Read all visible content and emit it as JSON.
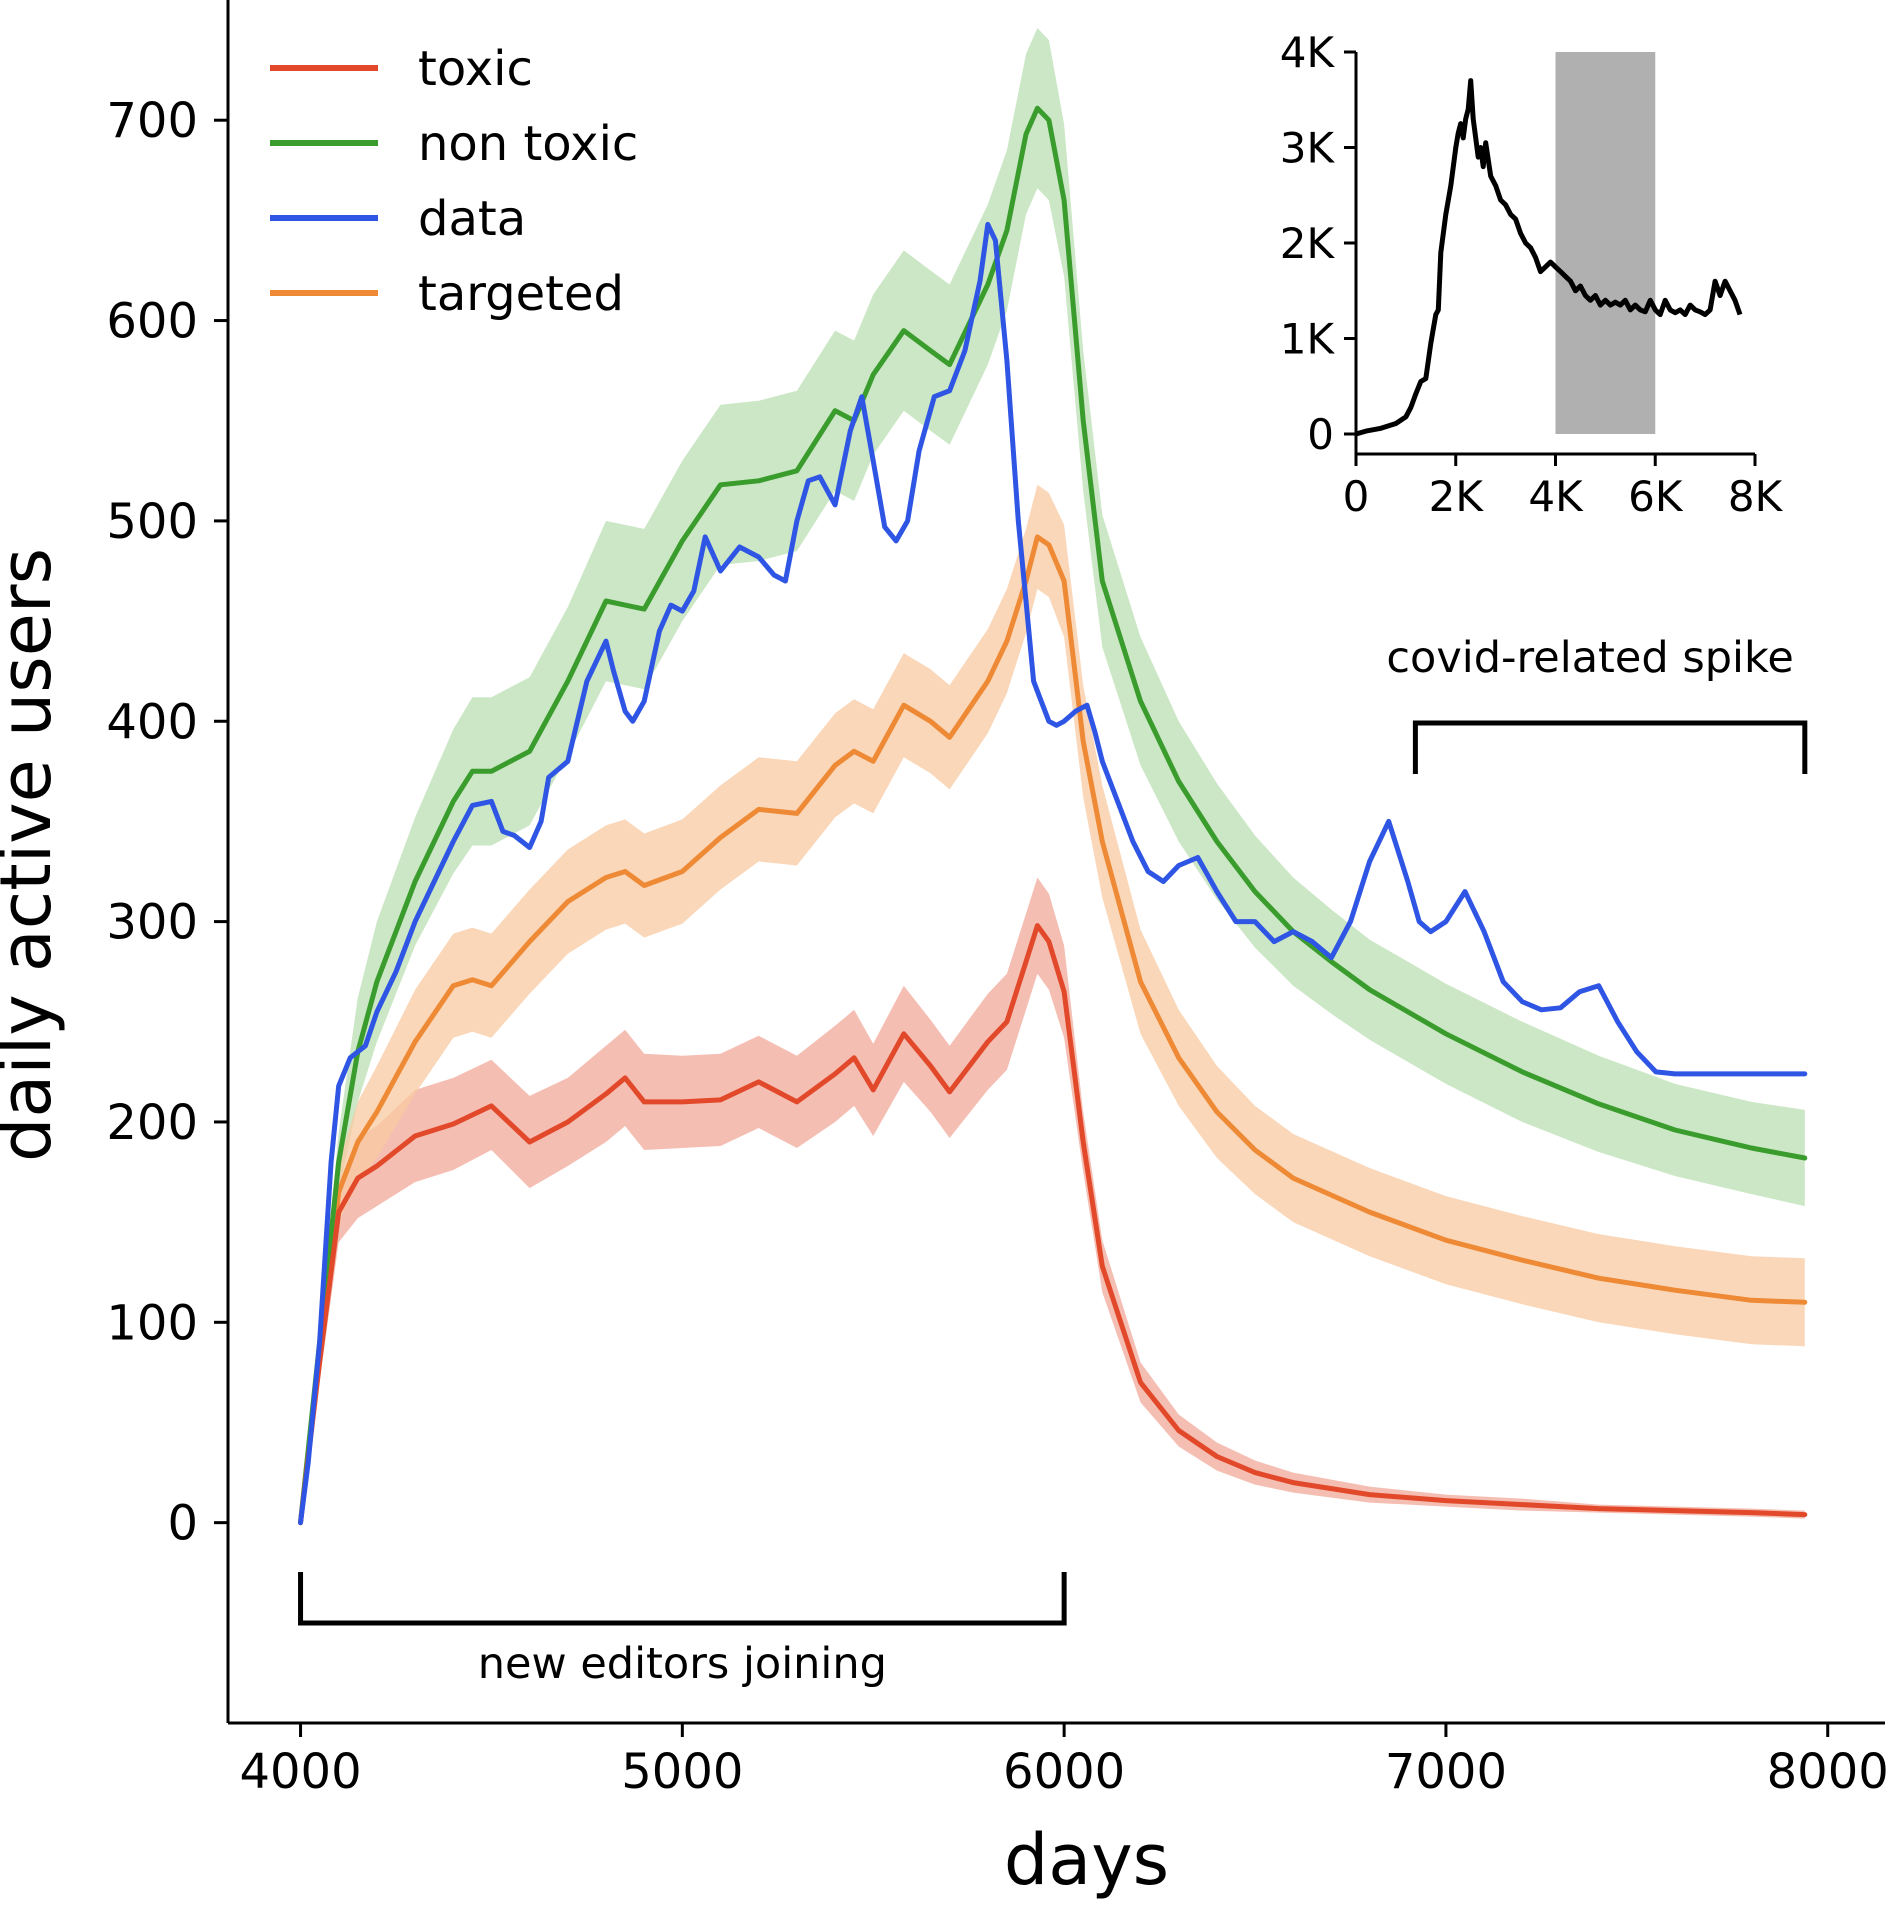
{
  "chart_data": [
    {
      "type": "line",
      "title": "",
      "xlabel": "days",
      "ylabel": "daily active users",
      "xlim": [
        3810,
        8150
      ],
      "ylim": [
        -100,
        760
      ],
      "xticks": [
        4000,
        5000,
        6000,
        7000,
        8000
      ],
      "xtick_labels": [
        "4000",
        "5000",
        "6000",
        "7000",
        "8000"
      ],
      "yticks": [
        0,
        100,
        200,
        300,
        400,
        500,
        600,
        700
      ],
      "ytick_labels": [
        "0",
        "100",
        "200",
        "300",
        "400",
        "500",
        "600",
        "700"
      ],
      "grid": false,
      "legend": "top-left",
      "series": [
        {
          "name": "toxic",
          "color": "#e2492a",
          "band_color": "#f2a899",
          "x": [
            4000,
            4050,
            4100,
            4150,
            4200,
            4300,
            4400,
            4500,
            4600,
            4700,
            4800,
            4850,
            4900,
            5000,
            5100,
            5200,
            5300,
            5400,
            5450,
            5500,
            5580,
            5650,
            5700,
            5800,
            5850,
            5900,
            5930,
            5960,
            6000,
            6050,
            6100,
            6200,
            6300,
            6400,
            6500,
            6600,
            6800,
            7000,
            7200,
            7400,
            7600,
            7800,
            7940
          ],
          "y": [
            0,
            80,
            155,
            172,
            178,
            193,
            199,
            208,
            190,
            200,
            214,
            222,
            210,
            210,
            211,
            220,
            210,
            224,
            232,
            216,
            244,
            228,
            215,
            240,
            250,
            280,
            298,
            290,
            265,
            190,
            128,
            70,
            46,
            33,
            25,
            20,
            14,
            11,
            9,
            7,
            6,
            5,
            4
          ],
          "band_lower": [
            0,
            70,
            140,
            152,
            158,
            170,
            176,
            186,
            167,
            178,
            190,
            198,
            186,
            187,
            188,
            197,
            187,
            200,
            208,
            193,
            220,
            205,
            192,
            216,
            226,
            256,
            274,
            266,
            242,
            175,
            115,
            60,
            38,
            26,
            19,
            15,
            10,
            8,
            6,
            5,
            4,
            3,
            2
          ],
          "band_upper": [
            0,
            90,
            170,
            192,
            198,
            216,
            222,
            231,
            213,
            222,
            238,
            246,
            234,
            233,
            234,
            243,
            233,
            248,
            256,
            239,
            268,
            251,
            238,
            264,
            274,
            304,
            322,
            314,
            288,
            205,
            141,
            80,
            54,
            40,
            31,
            25,
            18,
            14,
            12,
            9,
            8,
            7,
            6
          ]
        },
        {
          "name": "non toxic",
          "color": "#3a9c2d",
          "band_color": "#b9dfb1",
          "x": [
            4000,
            4050,
            4100,
            4150,
            4200,
            4300,
            4400,
            4450,
            4500,
            4600,
            4700,
            4800,
            4850,
            4900,
            5000,
            5100,
            5200,
            5300,
            5400,
            5450,
            5500,
            5580,
            5650,
            5700,
            5800,
            5850,
            5900,
            5930,
            5960,
            6000,
            6050,
            6100,
            6200,
            6300,
            6400,
            6500,
            6600,
            6700,
            6800,
            7000,
            7200,
            7400,
            7600,
            7800,
            7940
          ],
          "y": [
            0,
            90,
            180,
            235,
            270,
            320,
            360,
            375,
            375,
            385,
            420,
            460,
            458,
            456,
            490,
            518,
            520,
            525,
            555,
            550,
            573,
            595,
            585,
            578,
            618,
            645,
            693,
            706,
            700,
            660,
            550,
            470,
            410,
            370,
            340,
            315,
            295,
            280,
            266,
            244,
            225,
            209,
            196,
            187,
            182
          ],
          "band_lower": [
            0,
            85,
            165,
            210,
            240,
            288,
            324,
            338,
            338,
            348,
            383,
            420,
            418,
            416,
            450,
            478,
            480,
            485,
            515,
            510,
            533,
            555,
            545,
            538,
            578,
            605,
            653,
            666,
            660,
            622,
            515,
            437,
            378,
            340,
            311,
            287,
            268,
            254,
            241,
            219,
            200,
            185,
            173,
            164,
            158
          ],
          "band_upper": [
            0,
            95,
            195,
            262,
            300,
            352,
            396,
            412,
            412,
            422,
            457,
            500,
            498,
            496,
            530,
            558,
            560,
            565,
            595,
            590,
            613,
            635,
            625,
            618,
            658,
            685,
            733,
            746,
            740,
            698,
            585,
            503,
            442,
            400,
            369,
            343,
            322,
            306,
            291,
            269,
            250,
            233,
            219,
            210,
            206
          ]
        },
        {
          "name": "data",
          "color": "#2f55e4",
          "x": [
            4000,
            4020,
            4050,
            4080,
            4100,
            4130,
            4170,
            4200,
            4250,
            4300,
            4350,
            4400,
            4450,
            4500,
            4530,
            4560,
            4600,
            4630,
            4650,
            4700,
            4750,
            4800,
            4820,
            4850,
            4870,
            4900,
            4940,
            4970,
            5000,
            5030,
            5060,
            5100,
            5150,
            5200,
            5240,
            5270,
            5300,
            5330,
            5360,
            5400,
            5440,
            5470,
            5500,
            5530,
            5560,
            5590,
            5620,
            5660,
            5700,
            5740,
            5780,
            5800,
            5820,
            5850,
            5880,
            5900,
            5920,
            5940,
            5960,
            5980,
            6000,
            6030,
            6060,
            6080,
            6100,
            6140,
            6180,
            6220,
            6260,
            6300,
            6350,
            6400,
            6450,
            6500,
            6550,
            6600,
            6650,
            6700,
            6750,
            6800,
            6850,
            6900,
            6930,
            6960,
            7000,
            7050,
            7100,
            7150,
            7200,
            7250,
            7300,
            7350,
            7400,
            7450,
            7500,
            7550,
            7600,
            7650,
            7700,
            7750,
            7800,
            7850,
            7900,
            7940
          ],
          "y": [
            0,
            30,
            90,
            180,
            218,
            232,
            238,
            255,
            275,
            300,
            320,
            340,
            358,
            360,
            345,
            343,
            337,
            350,
            372,
            380,
            420,
            440,
            425,
            405,
            400,
            410,
            445,
            458,
            455,
            465,
            492,
            475,
            487,
            482,
            473,
            470,
            500,
            520,
            522,
            508,
            545,
            562,
            530,
            497,
            490,
            500,
            535,
            562,
            565,
            585,
            620,
            648,
            640,
            580,
            500,
            460,
            420,
            410,
            400,
            398,
            400,
            405,
            408,
            395,
            380,
            360,
            340,
            325,
            320,
            328,
            332,
            315,
            300,
            300,
            290,
            295,
            290,
            282,
            300,
            330,
            350,
            320,
            300,
            295,
            300,
            315,
            295,
            270,
            260,
            256,
            257,
            265,
            268,
            250,
            235,
            225,
            224,
            224,
            224,
            224,
            224,
            224,
            224,
            224
          ]
        },
        {
          "name": "targeted",
          "color": "#ee8a35",
          "band_color": "#f8c9a2",
          "x": [
            4000,
            4050,
            4100,
            4150,
            4200,
            4300,
            4400,
            4450,
            4500,
            4600,
            4700,
            4800,
            4850,
            4900,
            5000,
            5100,
            5200,
            5300,
            5400,
            5450,
            5500,
            5580,
            5650,
            5700,
            5800,
            5850,
            5900,
            5930,
            5960,
            6000,
            6050,
            6100,
            6200,
            6300,
            6400,
            6500,
            6600,
            6800,
            7000,
            7200,
            7400,
            7600,
            7800,
            7940
          ],
          "y": [
            0,
            85,
            165,
            190,
            205,
            240,
            268,
            271,
            268,
            290,
            310,
            322,
            325,
            318,
            325,
            342,
            356,
            354,
            378,
            385,
            380,
            408,
            400,
            392,
            420,
            440,
            470,
            492,
            488,
            470,
            390,
            340,
            270,
            232,
            205,
            186,
            172,
            155,
            141,
            131,
            122,
            116,
            111,
            110
          ],
          "band_lower": [
            0,
            78,
            150,
            170,
            182,
            214,
            242,
            245,
            242,
            264,
            284,
            296,
            299,
            292,
            299,
            316,
            330,
            328,
            352,
            359,
            354,
            382,
            374,
            366,
            394,
            414,
            444,
            466,
            462,
            442,
            362,
            312,
            244,
            208,
            182,
            164,
            150,
            133,
            119,
            109,
            100,
            94,
            89,
            88
          ],
          "band_upper": [
            0,
            92,
            180,
            210,
            228,
            266,
            294,
            297,
            294,
            316,
            336,
            348,
            351,
            344,
            351,
            368,
            382,
            380,
            404,
            411,
            406,
            434,
            426,
            418,
            446,
            466,
            496,
            518,
            514,
            498,
            418,
            368,
            296,
            256,
            228,
            208,
            194,
            177,
            163,
            153,
            144,
            138,
            133,
            132
          ]
        }
      ],
      "annotations": [
        {
          "text": "new editors joining",
          "x_start": 4000,
          "x_end": 6000
        },
        {
          "text": "covid-related spike",
          "x_start": 6920,
          "x_end": 7940
        }
      ]
    },
    {
      "type": "line",
      "title": "",
      "xlabel": "",
      "ylabel": "",
      "xlim": [
        0,
        8000
      ],
      "ylim": [
        0,
        4000
      ],
      "xticks": [
        0,
        2000,
        4000,
        6000,
        8000
      ],
      "xtick_labels": [
        "0",
        "2K",
        "4K",
        "6K",
        "8K"
      ],
      "yticks": [
        0,
        1000,
        2000,
        3000,
        4000
      ],
      "ytick_labels": [
        "0",
        "1K",
        "2K",
        "3K",
        "4K"
      ],
      "grid": false,
      "highlight_span": {
        "x_start": 4000,
        "x_end": 6000,
        "color": "#b0b0b0"
      },
      "series": [
        {
          "color": "#000000",
          "x": [
            0,
            200,
            500,
            800,
            1000,
            1100,
            1200,
            1300,
            1400,
            1500,
            1600,
            1650,
            1700,
            1800,
            1900,
            2000,
            2050,
            2100,
            2150,
            2200,
            2250,
            2300,
            2350,
            2400,
            2450,
            2500,
            2550,
            2600,
            2700,
            2800,
            2900,
            3000,
            3100,
            3200,
            3300,
            3400,
            3500,
            3600,
            3700,
            3800,
            3900,
            4000,
            4100,
            4200,
            4300,
            4400,
            4500,
            4600,
            4700,
            4800,
            4900,
            5000,
            5100,
            5200,
            5300,
            5400,
            5500,
            5600,
            5700,
            5800,
            5900,
            6000,
            6100,
            6200,
            6300,
            6400,
            6500,
            6600,
            6700,
            6800,
            6900,
            7000,
            7100,
            7200,
            7300,
            7400,
            7500,
            7600,
            7700
          ],
          "y": [
            0,
            30,
            60,
            110,
            180,
            280,
            420,
            550,
            580,
            950,
            1250,
            1300,
            1900,
            2300,
            2600,
            3000,
            3150,
            3250,
            3100,
            3300,
            3400,
            3700,
            3300,
            3100,
            2900,
            3000,
            2800,
            3050,
            2700,
            2600,
            2450,
            2400,
            2300,
            2250,
            2100,
            2000,
            1950,
            1850,
            1700,
            1750,
            1800,
            1750,
            1700,
            1650,
            1600,
            1500,
            1550,
            1450,
            1400,
            1450,
            1350,
            1400,
            1350,
            1380,
            1350,
            1400,
            1300,
            1350,
            1300,
            1280,
            1400,
            1300,
            1250,
            1400,
            1300,
            1270,
            1300,
            1250,
            1350,
            1300,
            1280,
            1250,
            1300,
            1600,
            1450,
            1600,
            1500,
            1400,
            1250
          ]
        }
      ]
    }
  ]
}
